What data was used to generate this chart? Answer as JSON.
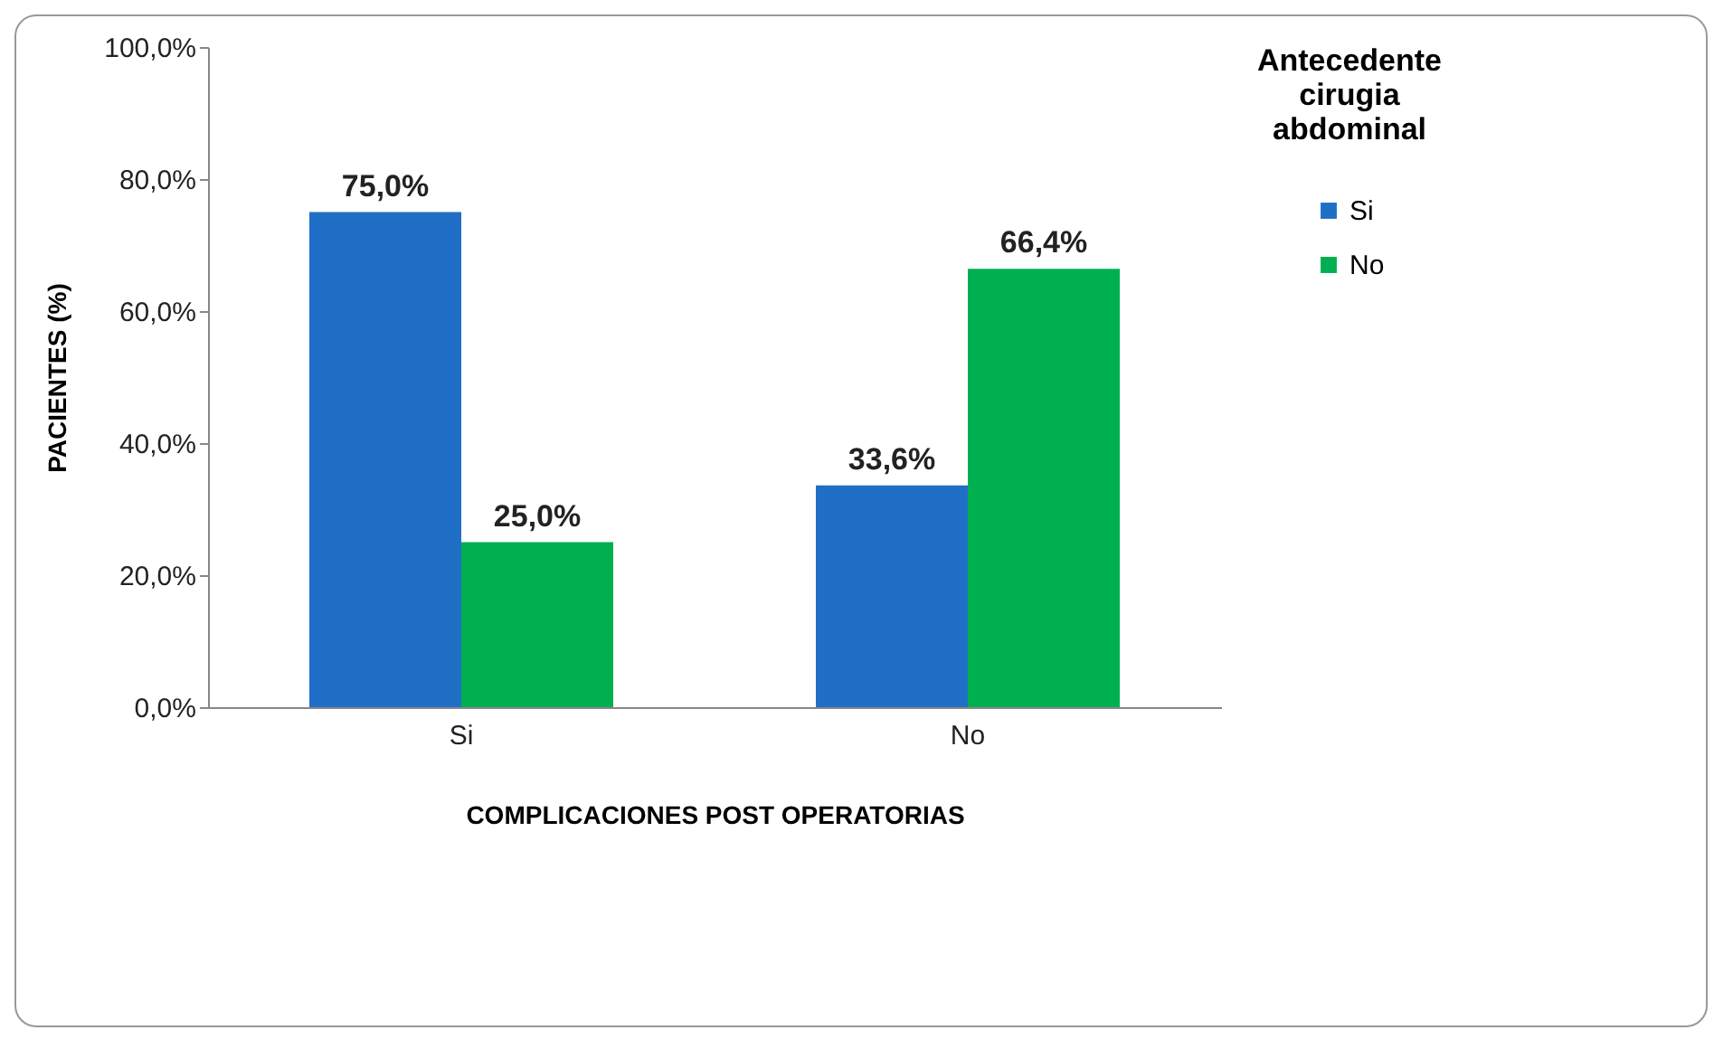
{
  "chart_data": {
    "type": "bar",
    "xlabel": "COMPLICACIONES POST OPERATORIAS",
    "ylabel": "PACIENTES (%)",
    "legend_title": "Antecedente cirugia abdominal",
    "categories": [
      "Si",
      "No"
    ],
    "series": [
      {
        "name": "Si",
        "color": "#1f6fc6",
        "values": [
          75.0,
          33.6
        ],
        "value_labels": [
          "75,0%",
          "33,6%"
        ]
      },
      {
        "name": "No",
        "color": "#00b050",
        "values": [
          25.0,
          66.4
        ],
        "value_labels": [
          "25,0%",
          "66,4%"
        ]
      }
    ],
    "ylim": [
      0,
      100
    ],
    "yticks": [
      {
        "value": 0,
        "label": "0,0%"
      },
      {
        "value": 20,
        "label": "20,0%"
      },
      {
        "value": 40,
        "label": "40,0%"
      },
      {
        "value": 60,
        "label": "60,0%"
      },
      {
        "value": 80,
        "label": "80,0%"
      },
      {
        "value": 100,
        "label": "100,0%"
      }
    ],
    "grid": false,
    "legend": "right"
  }
}
